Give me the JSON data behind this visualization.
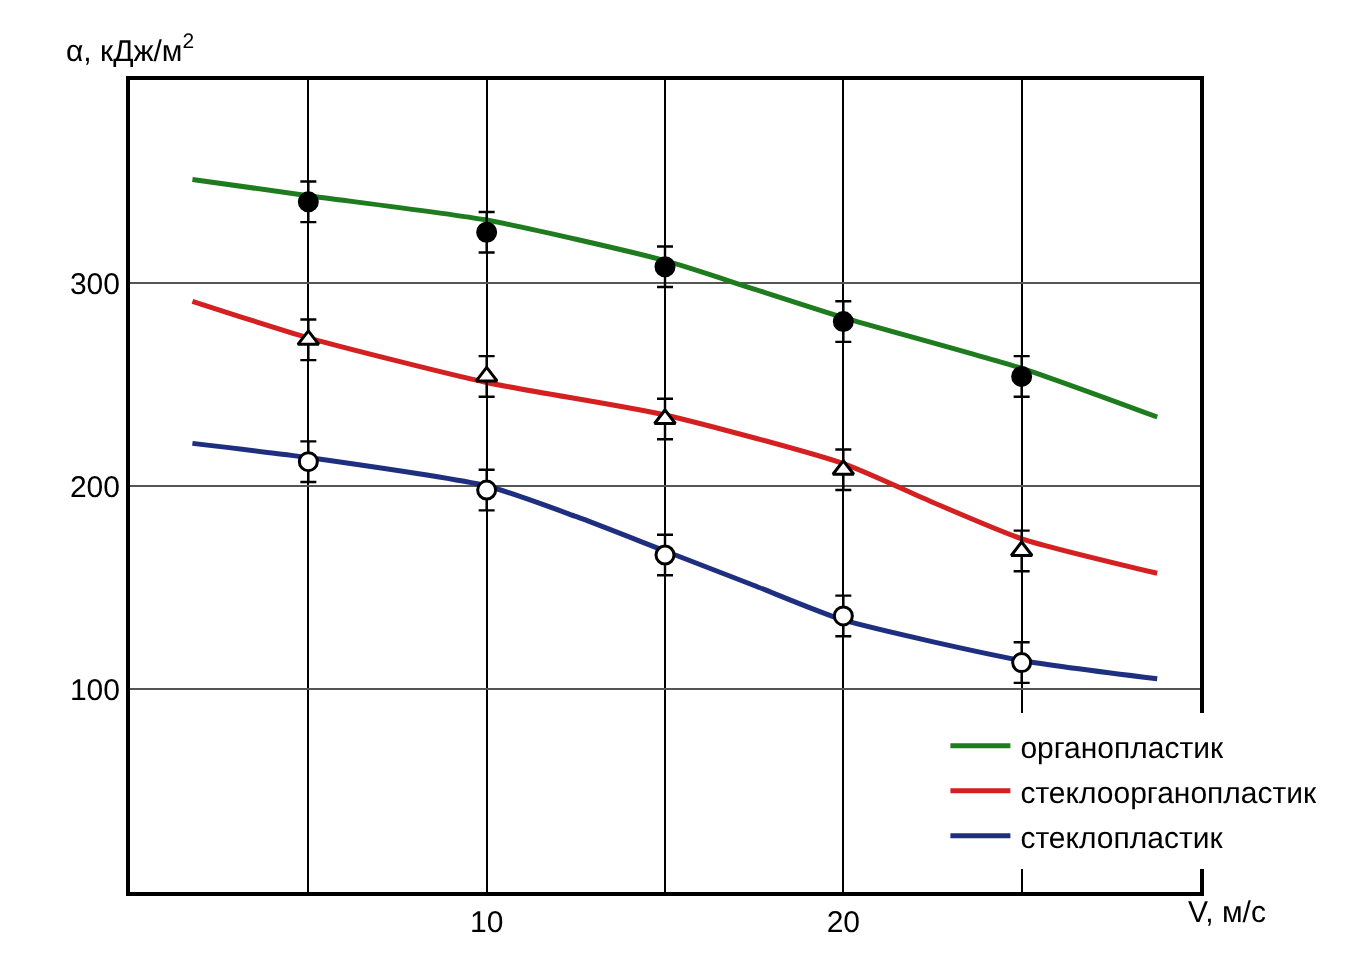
{
  "chart_data": {
    "type": "scatter",
    "xlabel": "V, м/с",
    "ylabel": "α, кДж/м$^{2}$",
    "xlim": [
      0,
      30
    ],
    "xticks": [
      {
        "value": 5,
        "label": null
      },
      10,
      {
        "value": 15,
        "label": null
      },
      20,
      {
        "value": 25,
        "label": null
      }
    ],
    "ylim": [
      0,
      400
    ],
    "yticks": [
      100,
      200,
      300
    ],
    "grid": true,
    "legend": "bottom right",
    "series": [
      {
        "type": "line",
        "name": "органопластик",
        "color": "#1e7b1e",
        "marker": "none",
        "x": [
          1.75,
          5,
          10,
          15,
          17.5,
          20,
          25,
          28.8
        ],
        "values": [
          351,
          343,
          331,
          311,
          297,
          283,
          258,
          234
        ]
      },
      {
        "type": "line",
        "name": "стеклоорганопластик",
        "color": "#d42020",
        "marker": "none",
        "x": [
          1.75,
          5,
          10,
          15,
          20,
          22.5,
          25,
          28.8
        ],
        "values": [
          291,
          273,
          251,
          235,
          211,
          192,
          174,
          157
        ]
      },
      {
        "type": "line",
        "name": "стеклопластик",
        "color": "#1f2f80",
        "marker": "none",
        "x": [
          1.75,
          5,
          10,
          12.5,
          15,
          17.5,
          20,
          25,
          28.8
        ],
        "values": [
          221,
          214,
          200,
          185,
          168,
          151,
          134,
          114,
          105
        ]
      },
      {
        "color": "#000000",
        "marker": "circle",
        "x": [
          5,
          10,
          15,
          20,
          25
        ],
        "values": [
          340,
          325,
          308,
          281,
          254
        ],
        "errors": [
          10,
          10,
          10,
          10,
          10
        ]
      },
      {
        "color": "#ffffff",
        "marker": "triangle",
        "x": [
          5,
          10,
          15,
          20,
          25
        ],
        "values": [
          272,
          254,
          233,
          208,
          168
        ],
        "errors": [
          10,
          10,
          10,
          10,
          10
        ]
      },
      {
        "color": "#ffffff",
        "marker": "circle",
        "x": [
          5,
          10,
          15,
          20,
          25
        ],
        "values": [
          212,
          198,
          166,
          136,
          113
        ],
        "errors": [
          10,
          10,
          10,
          10,
          10
        ]
      }
    ]
  }
}
